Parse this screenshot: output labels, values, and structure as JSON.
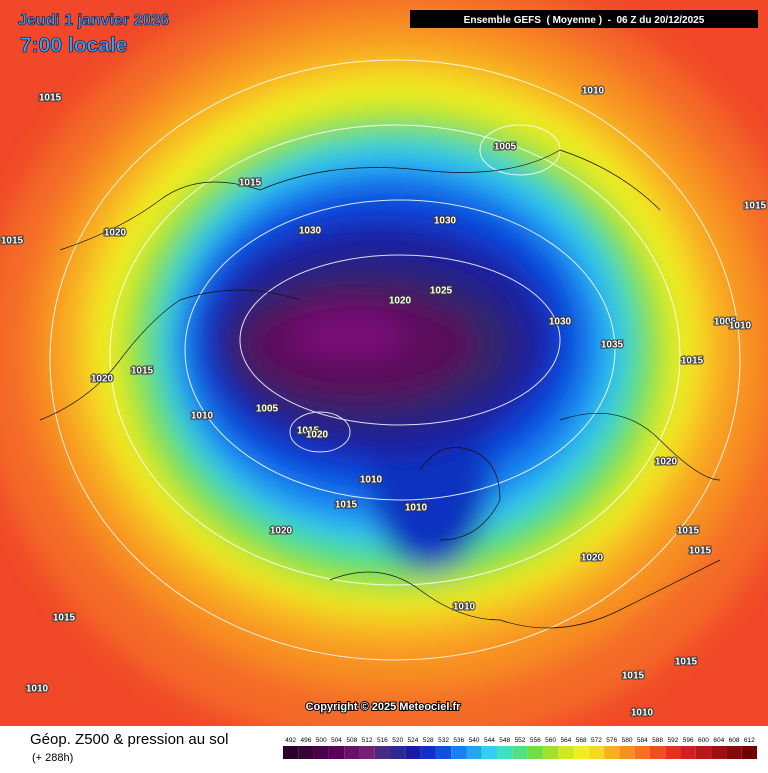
{
  "header": {
    "date": "Jeudi 1 janvier 2026",
    "time": "7:00 locale",
    "run": "Ensemble GEFS  ( Moyenne )  -  06 Z du 20/12/2025"
  },
  "isobar_labels": [
    "1015",
    "1010",
    "1005",
    "1015",
    "1030",
    "1015",
    "1015",
    "1020",
    "1030",
    "1025",
    "1020",
    "1030",
    "1035",
    "1005",
    "1010",
    "1015",
    "1020",
    "1015",
    "1010",
    "1005",
    "1015",
    "1020",
    "1010",
    "1015",
    "1010",
    "1020",
    "1020",
    "1015",
    "1015",
    "1020",
    "1010",
    "1015",
    "1015",
    "1015",
    "1010",
    "1010"
  ],
  "copyright": "Copyright © 2025 Meteociel.fr",
  "footer": {
    "title": "Géop. Z500 & pression au sol",
    "lead": "(+ 288h)"
  },
  "legend": {
    "ticks": [
      492,
      496,
      500,
      504,
      508,
      512,
      516,
      520,
      524,
      528,
      532,
      536,
      540,
      544,
      548,
      552,
      556,
      560,
      564,
      568,
      572,
      576,
      580,
      584,
      588,
      592,
      596,
      600,
      604,
      608,
      612
    ],
    "colors": [
      "#2a0028",
      "#3a0038",
      "#4a0048",
      "#5a005a",
      "#6a106a",
      "#781e78",
      "#4a2a80",
      "#2a2a90",
      "#1a1aa8",
      "#1030c8",
      "#1050e0",
      "#1880f0",
      "#20a8f0",
      "#30d0f0",
      "#40e0c0",
      "#50e080",
      "#70e040",
      "#a0e030",
      "#d0e820",
      "#f0f020",
      "#f8d820",
      "#f8b020",
      "#f89020",
      "#f87020",
      "#f05020",
      "#e83020",
      "#d02020",
      "#b81818",
      "#a01010",
      "#880808",
      "#700000"
    ]
  }
}
